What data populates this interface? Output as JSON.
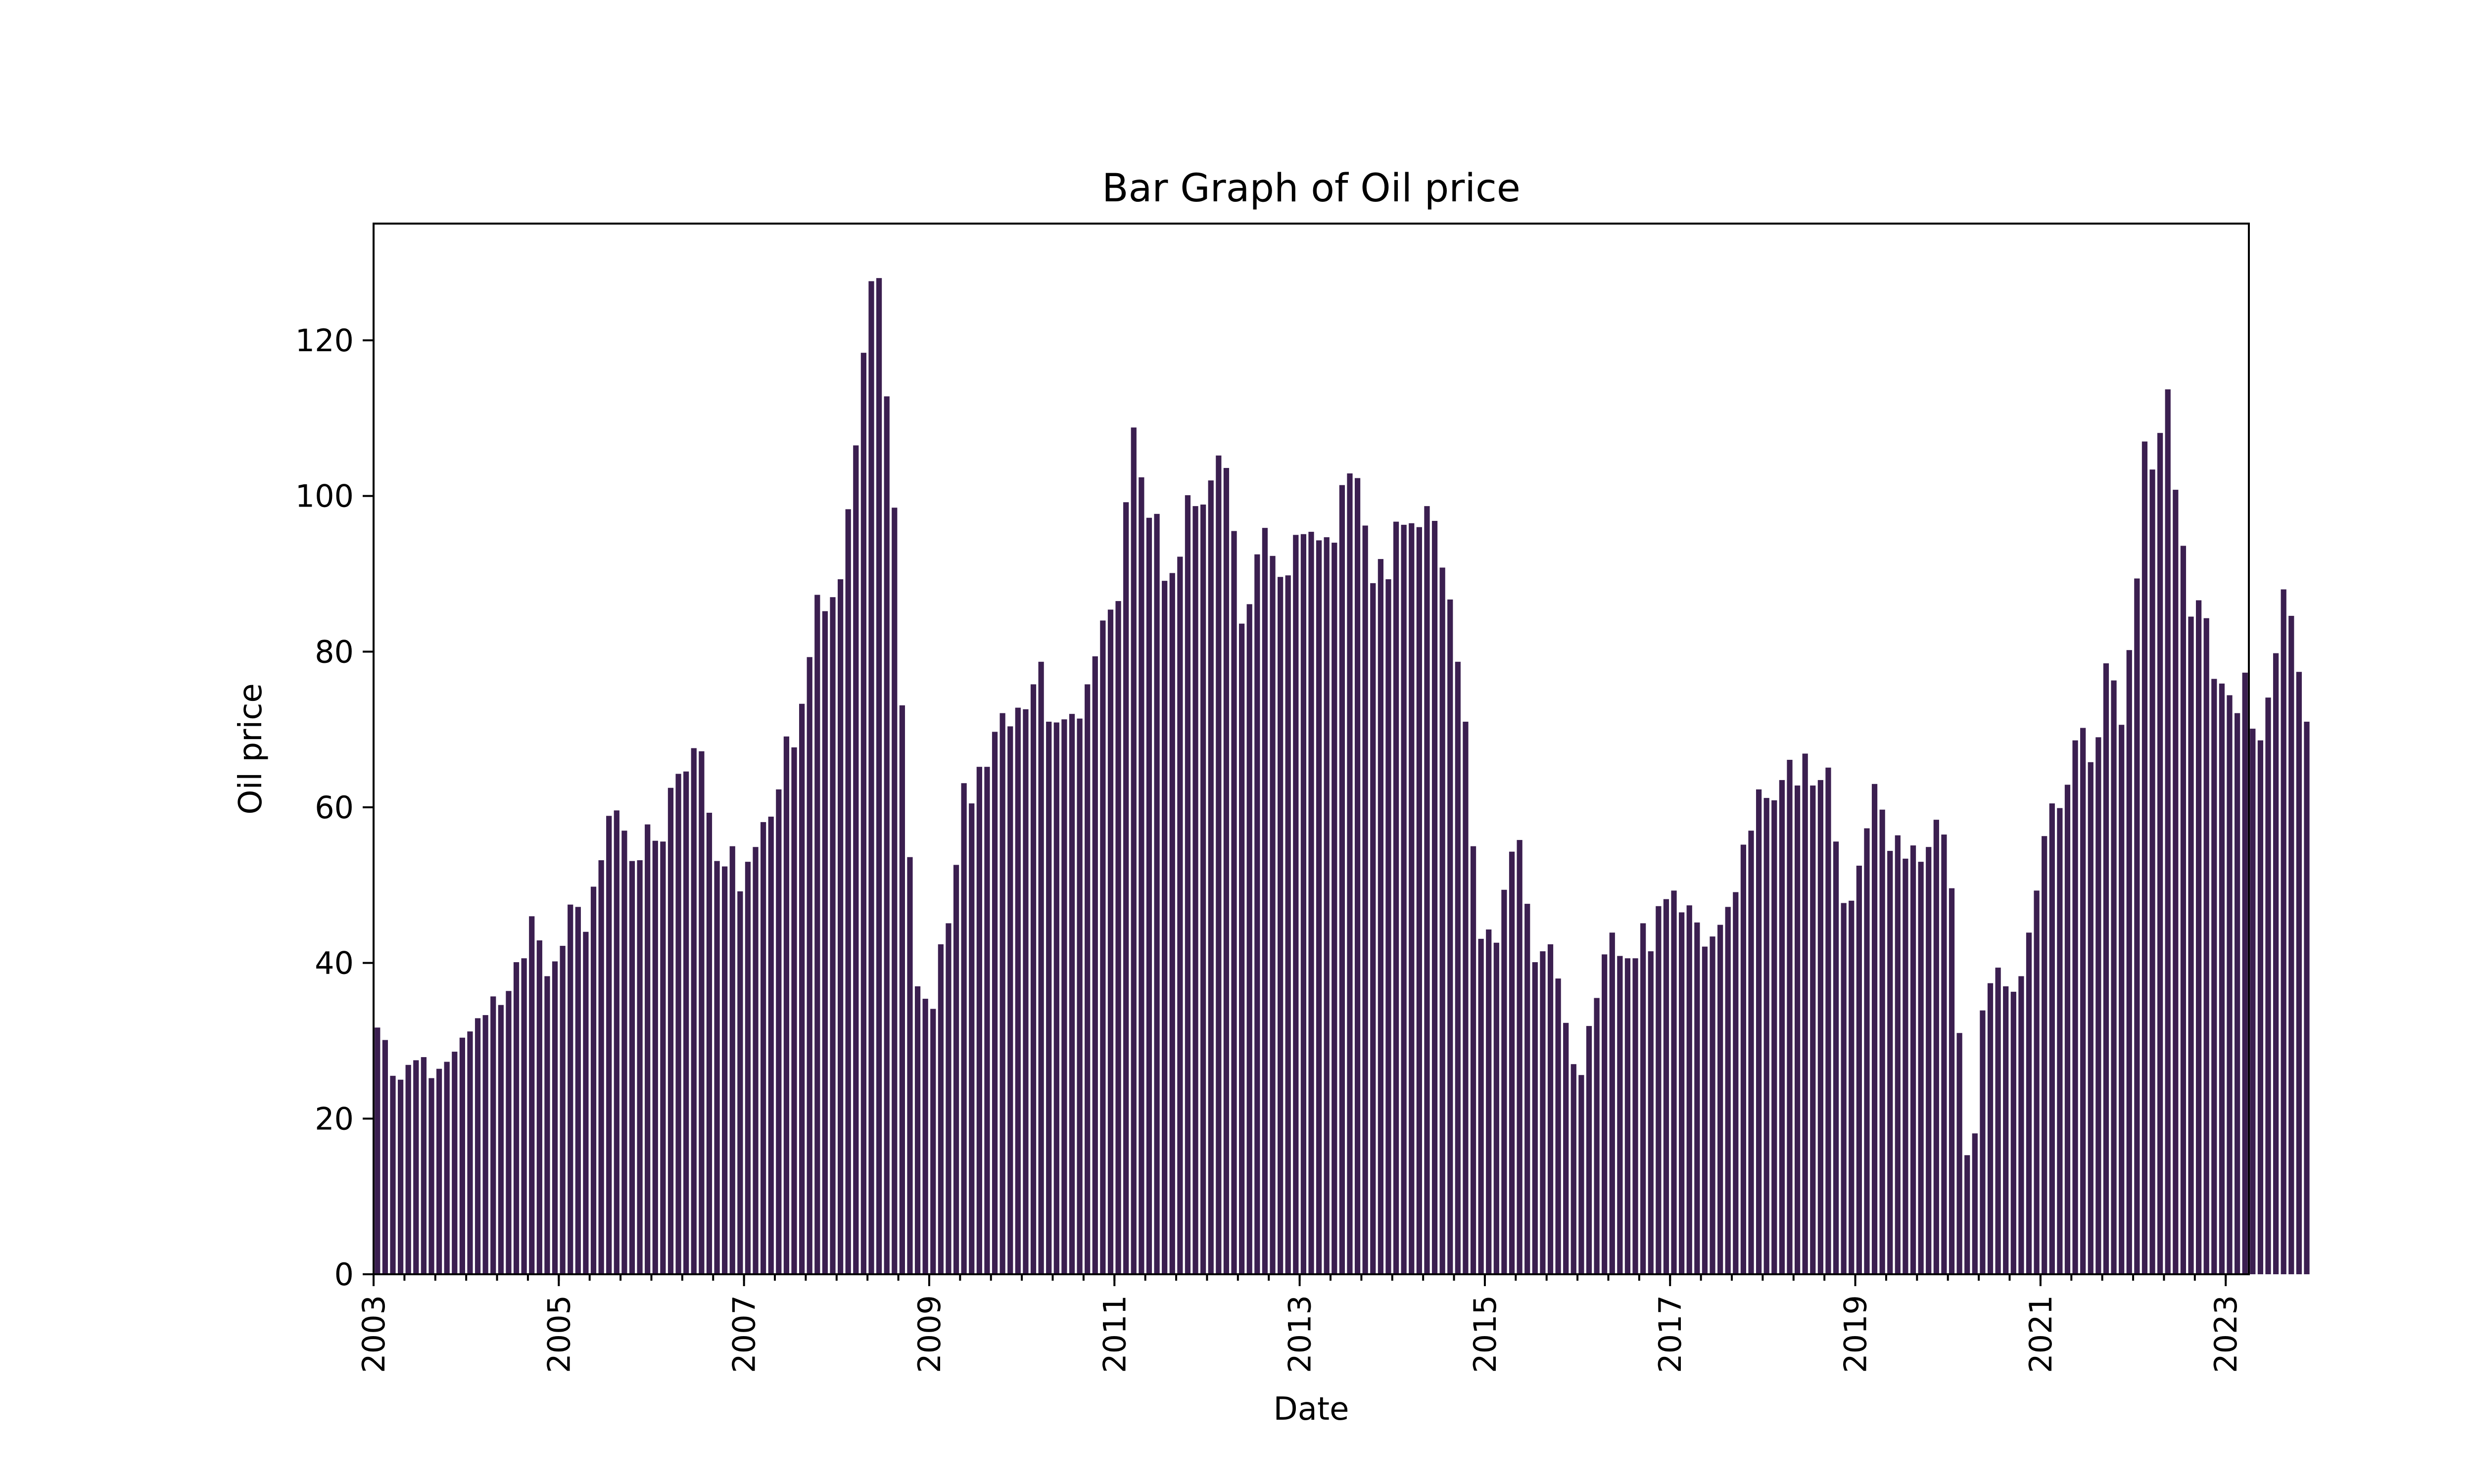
{
  "chart_data": {
    "type": "bar",
    "title": "Bar Graph of Oil price",
    "xlabel": "Date",
    "ylabel": "Oil price",
    "x_start": "2003-01",
    "frequency": "monthly",
    "ylim": [
      0,
      135
    ],
    "xlim": [
      "2003-01",
      "2023-04"
    ],
    "yticks": [
      0,
      20,
      40,
      60,
      80,
      100,
      120
    ],
    "xticks": [
      "2003",
      "2005",
      "2007",
      "2009",
      "2011",
      "2013",
      "2015",
      "2017",
      "2019",
      "2021",
      "2023"
    ],
    "grid": false,
    "legend": "none",
    "color": "#3b1f50",
    "values": [
      31.7,
      30.1,
      25.5,
      25.0,
      26.9,
      27.5,
      27.9,
      25.2,
      26.4,
      27.3,
      28.6,
      30.4,
      31.2,
      32.9,
      33.3,
      35.7,
      34.6,
      36.4,
      40.1,
      40.6,
      46.0,
      42.9,
      38.3,
      40.2,
      42.2,
      47.5,
      47.2,
      44.0,
      49.8,
      53.2,
      58.9,
      59.6,
      57.0,
      53.1,
      53.2,
      57.8,
      55.7,
      55.6,
      62.5,
      64.3,
      64.6,
      67.6,
      67.2,
      59.3,
      53.1,
      52.4,
      55.0,
      49.2,
      53.0,
      54.9,
      58.1,
      58.8,
      62.3,
      69.1,
      67.7,
      73.3,
      79.3,
      87.3,
      85.2,
      87.0,
      89.3,
      98.3,
      106.5,
      118.4,
      127.6,
      128.0,
      112.8,
      98.5,
      73.1,
      53.6,
      37.0,
      35.4,
      34.1,
      42.4,
      45.1,
      52.6,
      63.1,
      60.5,
      65.2,
      65.2,
      69.7,
      72.1,
      70.4,
      72.8,
      72.6,
      75.8,
      78.7,
      71.0,
      70.9,
      71.3,
      72.0,
      71.4,
      75.8,
      79.4,
      84.0,
      85.4,
      86.5,
      99.2,
      108.8,
      102.4,
      97.2,
      97.7,
      89.1,
      90.1,
      92.2,
      100.1,
      98.7,
      98.9,
      102.0,
      105.2,
      103.6,
      95.5,
      83.6,
      86.1,
      92.5,
      95.9,
      92.3,
      89.6,
      89.8,
      95.0,
      95.1,
      95.4,
      94.3,
      94.7,
      94.0,
      101.4,
      102.9,
      102.3,
      96.2,
      88.8,
      91.9,
      89.3,
      96.7,
      96.3,
      96.5,
      96.0,
      98.7,
      96.8,
      90.8,
      86.7,
      78.7,
      71.0,
      55.0,
      43.1,
      44.3,
      42.6,
      49.4,
      54.3,
      55.8,
      47.6,
      40.1,
      41.5,
      42.4,
      38.0,
      32.3,
      27.0,
      25.6,
      31.9,
      35.5,
      41.1,
      43.9,
      40.9,
      40.6,
      40.6,
      45.1,
      41.5,
      47.3,
      48.2,
      49.3,
      46.5,
      47.4,
      45.2,
      42.1,
      43.4,
      44.9,
      47.2,
      49.1,
      55.2,
      57.0,
      62.3,
      61.2,
      60.9,
      63.5,
      66.1,
      62.8,
      66.9,
      62.8,
      63.5,
      65.1,
      55.6,
      47.7,
      48.0,
      52.5,
      57.3,
      63.0,
      59.7,
      54.4,
      56.4,
      53.4,
      55.1,
      53.0,
      54.9,
      58.4,
      56.5,
      49.6,
      31.0,
      15.3,
      18.1,
      33.9,
      37.4,
      39.4,
      37.0,
      36.3,
      38.3,
      43.9,
      49.3,
      56.3,
      60.5,
      59.9,
      62.9,
      68.6,
      70.2,
      65.8,
      69.0,
      78.5,
      76.3,
      70.6,
      80.2,
      89.4,
      107.0,
      103.4,
      108.1,
      113.7,
      100.8,
      93.6,
      84.5,
      86.6,
      84.3,
      76.5,
      75.9,
      74.4,
      72.1,
      77.3,
      70.1,
      68.6,
      74.1,
      79.8,
      88.0,
      84.6,
      77.4,
      71.0
    ]
  }
}
